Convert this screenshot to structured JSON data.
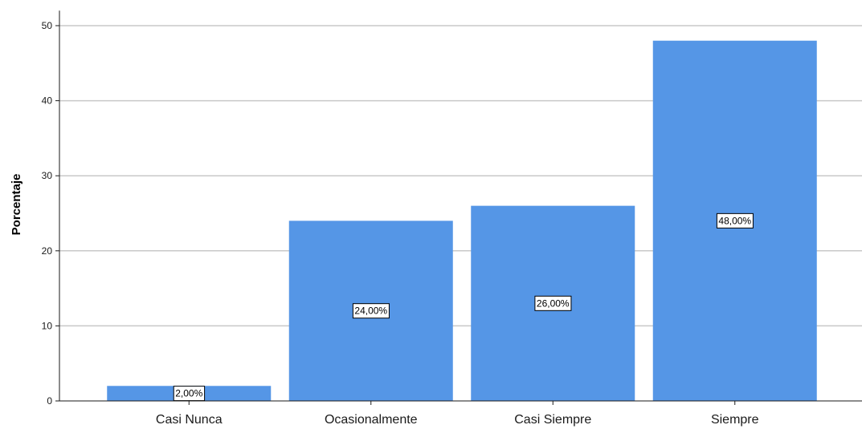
{
  "chart_data": {
    "type": "bar",
    "categories": [
      "Casi Nunca",
      "Ocasionalmente",
      "Casi Siempre",
      "Siempre"
    ],
    "values": [
      2,
      24,
      26,
      48
    ],
    "data_labels": [
      "2,00%",
      "24,00%",
      "26,00%",
      "48,00%"
    ],
    "title": "",
    "xlabel": "",
    "ylabel": "Porcentaje",
    "ylim": [
      0,
      52
    ],
    "yticks": [
      0,
      10,
      20,
      30,
      40,
      50
    ],
    "grid": true,
    "bar_color": "#5596e6",
    "grid_color": "#c8c8c8"
  }
}
